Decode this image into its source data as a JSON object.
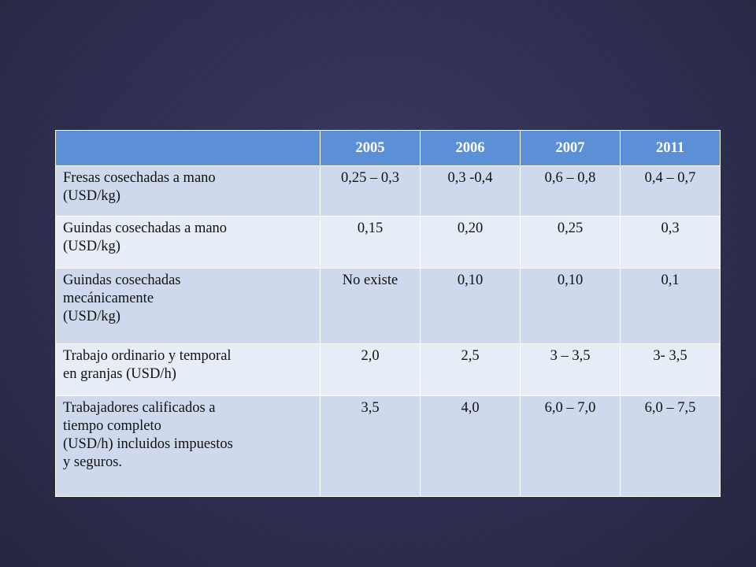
{
  "table": {
    "headers": [
      "",
      "2005",
      "2006",
      "2007",
      "2011"
    ],
    "rows": [
      {
        "label_lines": [
          "Fresas cosechadas a mano",
          "(USD/kg)"
        ],
        "values": [
          "0,25 – 0,3",
          "0,3 -0,4",
          "0,6 – 0,8",
          "0,4 – 0,7"
        ]
      },
      {
        "label_lines": [
          "Guindas cosechadas a mano",
          "(USD/kg)"
        ],
        "values": [
          "0,15",
          "0,20",
          "0,25",
          "0,3"
        ]
      },
      {
        "label_lines": [
          "Guindas cosechadas",
          "mecánicamente",
          "(USD/kg)"
        ],
        "values": [
          "No existe",
          "0,10",
          "0,10",
          "0,1"
        ]
      },
      {
        "label_lines": [
          "Trabajo ordinario y temporal",
          "en granjas (USD/h)"
        ],
        "values": [
          "2,0",
          "2,5",
          "3 – 3,5",
          "3- 3,5"
        ]
      },
      {
        "label_lines": [
          "Trabajadores calificados  a",
          "tiempo completo",
          "(USD/h) incluidos impuestos",
          "y seguros."
        ],
        "values": [
          "3,5",
          "4,0",
          "6,0 – 7,0",
          "6,0 – 7,5"
        ]
      }
    ]
  },
  "colors": {
    "background": "#2e2e52",
    "header_fill": "#5b8fd6",
    "row_odd_fill": "#cfd9ee",
    "row_even_fill": "#e7edf7"
  }
}
